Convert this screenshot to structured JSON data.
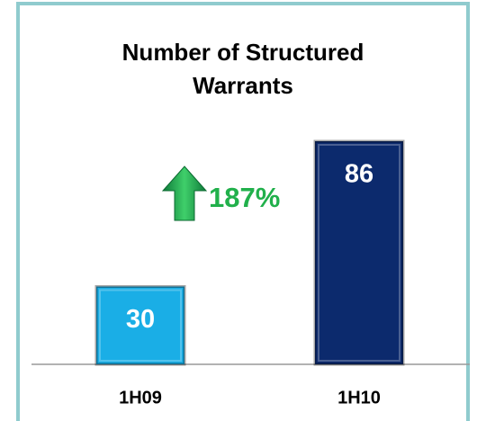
{
  "chart_data": {
    "type": "bar",
    "title": "Number of Structured Warrants",
    "categories": [
      "1H09",
      "1H10"
    ],
    "values": [
      30,
      86
    ],
    "colors": [
      "#1aaee6",
      "#0c2a6d"
    ],
    "annotation": "187%"
  }
}
